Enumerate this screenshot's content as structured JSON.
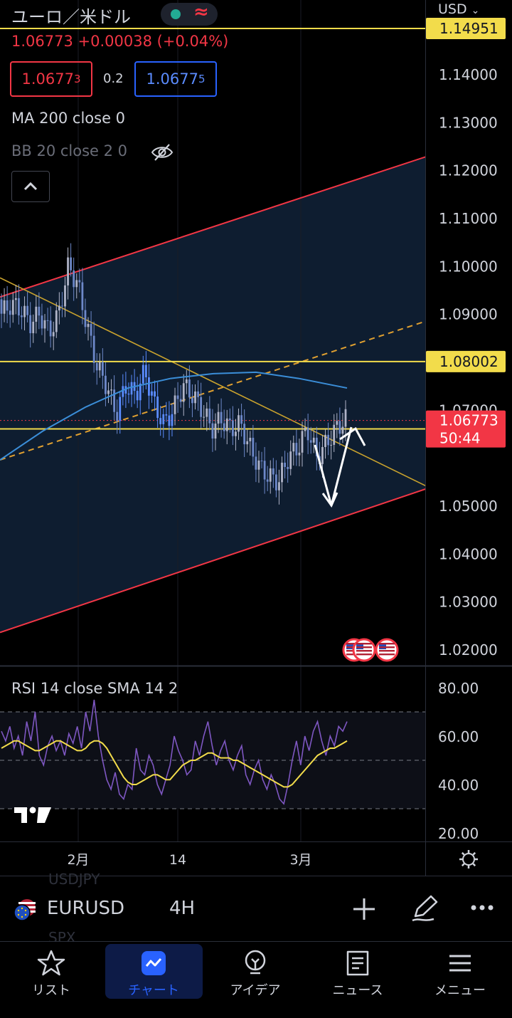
{
  "header": {
    "title": "ユーロ／米ドル",
    "currency": "USD",
    "last_price": "1.06773",
    "change": "+0.00038",
    "change_pct": "(+0.04%)",
    "bid_main": "1.0677",
    "bid_sup": "3",
    "spread": "0.2",
    "ask_main": "1.0677",
    "ask_sup": "5"
  },
  "indicators": {
    "ma": "MA 200 close 0",
    "bb": "BB 20 close 2 0"
  },
  "chart_data": {
    "type": "candlestick",
    "symbol": "EURUSD",
    "interval": "4H",
    "y_ticks": [
      "1.14000",
      "1.13000",
      "1.12000",
      "1.11000",
      "1.10000",
      "1.09000",
      "1.07000",
      "1.05000",
      "1.04000",
      "1.03000",
      "1.02000"
    ],
    "y_range": [
      1.0165,
      1.1495
    ],
    "x_ticks": [
      "2月",
      "14",
      "3月"
    ],
    "price_labels": {
      "top_line": "1.14951",
      "line_mid": "1.08002",
      "current": "1.06773",
      "countdown": "50:44",
      "line_low": "1.06597"
    },
    "horizontal_levels": [
      1.14951,
      1.08002,
      1.06597
    ],
    "channel_upper": [
      [
        0,
        1.0935
      ],
      [
        600,
        1.1228
      ]
    ],
    "channel_lower": [
      [
        0,
        1.0235
      ],
      [
        600,
        1.0535
      ]
    ],
    "channel_mid": [
      [
        0,
        1.0595
      ],
      [
        600,
        1.0885
      ]
    ],
    "downtrend_line": [
      [
        0,
        1.0975
      ],
      [
        600,
        1.054
      ]
    ],
    "candles_ohlc_sample": [
      [
        1.093,
        1.095,
        1.088,
        1.09
      ],
      [
        1.09,
        1.094,
        1.087,
        1.092
      ],
      [
        1.092,
        1.094,
        1.089,
        1.091
      ],
      [
        1.091,
        1.093,
        1.087,
        1.088
      ],
      [
        1.088,
        1.092,
        1.085,
        1.09
      ],
      [
        1.09,
        1.093,
        1.084,
        1.086
      ],
      [
        1.086,
        1.092,
        1.083,
        1.09
      ],
      [
        1.09,
        1.104,
        1.089,
        1.1
      ],
      [
        1.1,
        1.103,
        1.094,
        1.096
      ],
      [
        1.096,
        1.097,
        1.085,
        1.087
      ],
      [
        1.087,
        1.089,
        1.077,
        1.079
      ],
      [
        1.079,
        1.081,
        1.073,
        1.075
      ],
      [
        1.075,
        1.078,
        1.066,
        1.069
      ],
      [
        1.069,
        1.077,
        1.067,
        1.075
      ],
      [
        1.075,
        1.078,
        1.071,
        1.073
      ],
      [
        1.073,
        1.08,
        1.072,
        1.078
      ],
      [
        1.078,
        1.079,
        1.069,
        1.071
      ],
      [
        1.071,
        1.073,
        1.065,
        1.067
      ],
      [
        1.067,
        1.072,
        1.066,
        1.07
      ],
      [
        1.07,
        1.077,
        1.069,
        1.075
      ],
      [
        1.075,
        1.08,
        1.071,
        1.073
      ],
      [
        1.073,
        1.075,
        1.068,
        1.07
      ],
      [
        1.07,
        1.071,
        1.064,
        1.066
      ],
      [
        1.066,
        1.07,
        1.062,
        1.068
      ],
      [
        1.068,
        1.07,
        1.065,
        1.066
      ],
      [
        1.066,
        1.069,
        1.063,
        1.067
      ],
      [
        1.067,
        1.068,
        1.06,
        1.062
      ],
      [
        1.062,
        1.064,
        1.057,
        1.058
      ],
      [
        1.058,
        1.061,
        1.055,
        1.056
      ],
      [
        1.056,
        1.059,
        1.054,
        1.055
      ],
      [
        1.055,
        1.061,
        1.054,
        1.06
      ],
      [
        1.06,
        1.064,
        1.058,
        1.062
      ],
      [
        1.062,
        1.069,
        1.06,
        1.066
      ],
      [
        1.066,
        1.068,
        1.058,
        1.06
      ],
      [
        1.06,
        1.065,
        1.059,
        1.063
      ],
      [
        1.063,
        1.068,
        1.062,
        1.066
      ],
      [
        1.066,
        1.069,
        1.064,
        1.068
      ]
    ],
    "events": [
      "us-flag-icon",
      "us-flag-icon",
      "us-flag-icon"
    ]
  },
  "rsi": {
    "label": "RSI 14 close SMA 14 2",
    "y_ticks": [
      "80.00",
      "60.00",
      "40.00",
      "20.00"
    ],
    "y_range": [
      17,
      86
    ],
    "bands": [
      70,
      50,
      30
    ],
    "rsi_values": [
      62,
      58,
      64,
      55,
      60,
      52,
      66,
      58,
      70,
      52,
      48,
      56,
      60,
      54,
      58,
      52,
      61,
      57,
      64,
      55,
      70,
      62,
      75,
      60,
      50,
      42,
      38,
      45,
      36,
      34,
      40,
      38,
      55,
      46,
      44,
      52,
      48,
      40,
      36,
      42,
      48,
      60,
      54,
      50,
      44,
      46,
      58,
      52,
      60,
      66,
      56,
      48,
      54,
      58,
      50,
      46,
      52,
      56,
      44,
      40,
      46,
      50,
      42,
      38,
      44,
      40,
      34,
      32,
      40,
      50,
      58,
      48,
      60,
      54,
      62,
      66,
      58,
      52,
      60,
      56,
      64,
      62,
      66
    ],
    "sma_values": [
      55,
      56,
      57,
      58,
      58,
      57,
      56,
      55,
      54,
      54,
      55,
      56,
      57,
      58,
      58,
      57,
      56,
      55,
      54,
      54,
      55,
      57,
      58,
      58,
      57,
      55,
      52,
      49,
      46,
      43,
      41,
      40,
      40,
      41,
      42,
      43,
      44,
      44,
      43,
      42,
      42,
      44,
      46,
      48,
      49,
      50,
      50,
      51,
      52,
      53,
      53,
      52,
      51,
      51,
      51,
      50,
      50,
      49,
      48,
      47,
      46,
      45,
      44,
      43,
      42,
      41,
      40,
      39,
      39,
      40,
      42,
      44,
      46,
      48,
      50,
      52,
      53,
      54,
      55,
      55,
      56,
      57,
      58
    ]
  },
  "toolbar": {
    "symbol": "EURUSD",
    "interval": "4H",
    "ghost_above": "USDJPY",
    "ghost_below": "SPX"
  },
  "nav": [
    {
      "label": "リスト",
      "icon": "star-icon"
    },
    {
      "label": "チャート",
      "icon": "chart-icon",
      "active": true
    },
    {
      "label": "アイデア",
      "icon": "lightbulb-icon"
    },
    {
      "label": "ニュース",
      "icon": "news-icon"
    },
    {
      "label": "メニュー",
      "icon": "menu-icon"
    }
  ],
  "colors": {
    "up": "#b0b4c8",
    "down": "#6d88c9",
    "candle_blue": "#5b8cff",
    "channel": "#f23645",
    "level": "#f2dc4b",
    "trend": "#c9a22d",
    "ma": "#3b8ed8",
    "rsi": "#7e57c2",
    "rsi_sma": "#f2dc4b",
    "accent": "#2962ff"
  }
}
